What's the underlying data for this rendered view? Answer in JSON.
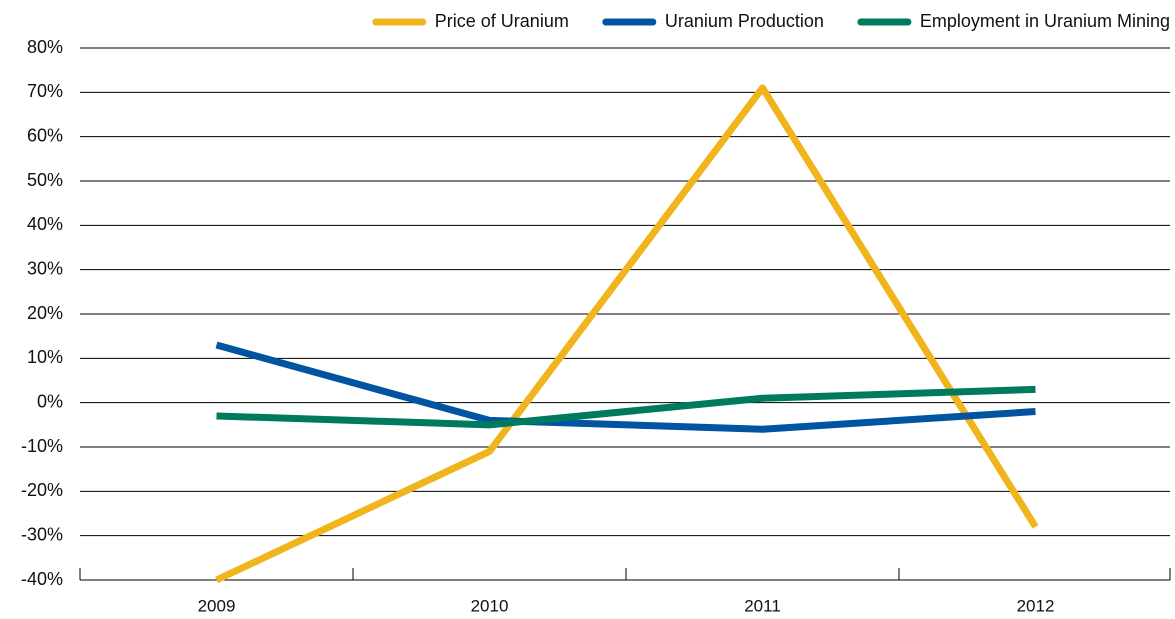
{
  "chart_data": {
    "type": "line",
    "categories": [
      "2009",
      "2010",
      "2011",
      "2012"
    ],
    "series": [
      {
        "name": "Price of Uranium",
        "color": "#f0b41c",
        "values": [
          -40,
          -11,
          71,
          -28
        ]
      },
      {
        "name": "Uranium Production",
        "color": "#0054a0",
        "values": [
          13,
          -4,
          -6,
          -2
        ]
      },
      {
        "name": "Employment in Uranium Mining",
        "color": "#007a5e",
        "values": [
          -3,
          -5,
          1,
          3
        ]
      }
    ],
    "ylim": [
      -40,
      80
    ],
    "yticks": [
      {
        "value": -40,
        "label": "-40%"
      },
      {
        "value": -30,
        "label": "-30%"
      },
      {
        "value": -20,
        "label": "-20%"
      },
      {
        "value": -10,
        "label": "-10%"
      },
      {
        "value": 0,
        "label": "0%"
      },
      {
        "value": 10,
        "label": "10%"
      },
      {
        "value": 20,
        "label": "20%"
      },
      {
        "value": 30,
        "label": "30%"
      },
      {
        "value": 40,
        "label": "40%"
      },
      {
        "value": 50,
        "label": "50%"
      },
      {
        "value": 60,
        "label": "60%"
      },
      {
        "value": 70,
        "label": "70%"
      },
      {
        "value": 80,
        "label": "80%"
      }
    ],
    "grid": true,
    "legend": "top-right"
  }
}
